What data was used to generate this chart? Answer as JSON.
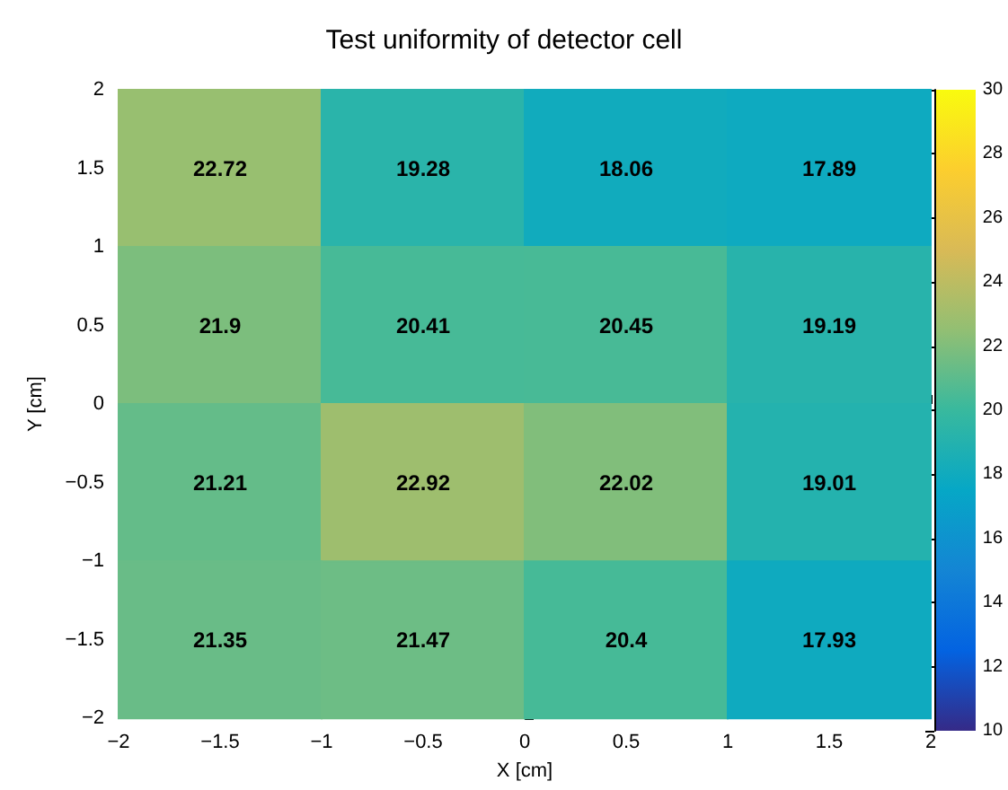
{
  "chart_data": {
    "type": "heatmap",
    "title": "Test uniformity of detector cell",
    "xlabel": "X [cm]",
    "ylabel": "Y [cm]",
    "xlim": [
      -2,
      2
    ],
    "ylim": [
      -2,
      2
    ],
    "xticks": [
      -2,
      -1.5,
      -1,
      -0.5,
      0,
      0.5,
      1,
      1.5,
      2
    ],
    "yticks": [
      -2,
      -1.5,
      -1,
      -0.5,
      0,
      0.5,
      1,
      1.5,
      2
    ],
    "cells": [
      [
        22.72,
        19.28,
        18.06,
        17.89
      ],
      [
        21.9,
        20.41,
        20.45,
        19.19
      ],
      [
        21.21,
        22.92,
        22.02,
        19.01
      ],
      [
        21.35,
        21.47,
        20.4,
        17.93
      ]
    ],
    "data_labels": true,
    "clim": [
      10,
      30
    ],
    "cticks": [
      10,
      12,
      14,
      16,
      18,
      20,
      22,
      24,
      26,
      28,
      30
    ],
    "grid": false
  }
}
